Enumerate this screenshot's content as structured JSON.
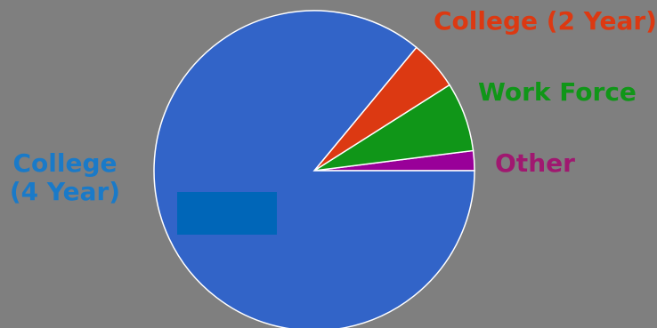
{
  "chart_data": {
    "type": "pie",
    "title": "",
    "slices": [
      {
        "label": "College (4 year)",
        "label_lines": [
          "College",
          "(4 Year)"
        ],
        "value": 86,
        "color": "#3264c8",
        "label_color": "#1a7ac8"
      },
      {
        "label": "College (2 Year)",
        "value": 5,
        "color": "#dc3912",
        "label_color": "#dc3912"
      },
      {
        "label": "Work Force",
        "value": 7,
        "color": "#109618",
        "label_color": "#109618"
      },
      {
        "label": "Other",
        "value": 2,
        "color": "#990099",
        "label_color": "#a01870"
      }
    ],
    "redaction_color": "#0066b8"
  }
}
